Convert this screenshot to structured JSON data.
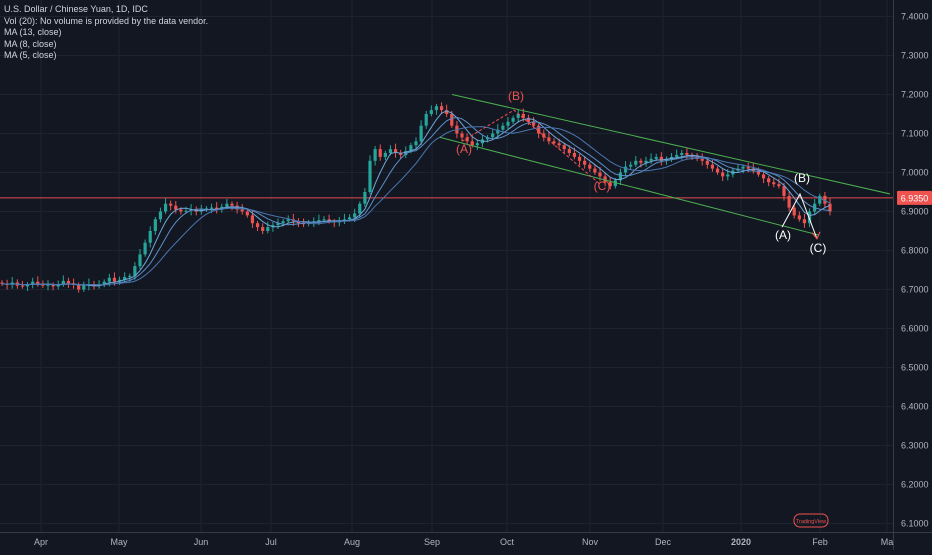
{
  "legend": {
    "title": "U.S. Dollar / Chinese Yuan, 1D, IDC",
    "vol": "Vol (20): No volume is provided by the data vendor.",
    "ma13": "MA (13, close)",
    "ma8": "MA (8, close)",
    "ma5": "MA (5, close)"
  },
  "price_badge": "6.9350",
  "watermark": "TradingView",
  "colors": {
    "background": "#131722",
    "up": "#26a69a",
    "down": "#ef5350",
    "ma": "#5b9bd5",
    "channel": "#4caf50",
    "wave_red": "#ef5350",
    "wave_white": "#ffffff",
    "grid": "#1e2330",
    "axis_text": "#b2b5be"
  },
  "chart_data": {
    "type": "candlestick",
    "title": "U.S. Dollar / Chinese Yuan, 1D, IDC",
    "y_range": [
      6.05,
      7.45
    ],
    "y_ticks": [
      "7.4000",
      "7.3000",
      "7.2000",
      "7.1000",
      "7.0000",
      "6.9000",
      "6.8000",
      "6.7000",
      "6.6000",
      "6.5000",
      "6.4000",
      "6.3000",
      "6.2000",
      "6.1000"
    ],
    "x_labels": [
      "Apr",
      "May",
      "Jun",
      "Jul",
      "Aug",
      "Sep",
      "Oct",
      "Nov",
      "Dec",
      "2020",
      "Feb",
      "Ma"
    ],
    "horizontal_line": 6.935,
    "closes": [
      6.715,
      6.712,
      6.718,
      6.71,
      6.708,
      6.713,
      6.72,
      6.715,
      6.71,
      6.712,
      6.708,
      6.713,
      6.722,
      6.716,
      6.712,
      6.7,
      6.71,
      6.714,
      6.71,
      6.712,
      6.72,
      6.73,
      6.72,
      6.725,
      6.732,
      6.735,
      6.76,
      6.79,
      6.82,
      6.85,
      6.88,
      6.9,
      6.92,
      6.915,
      6.905,
      6.9,
      6.902,
      6.905,
      6.9,
      6.905,
      6.908,
      6.91,
      6.905,
      6.912,
      6.92,
      6.915,
      6.905,
      6.9,
      6.89,
      6.87,
      6.86,
      6.85,
      6.86,
      6.865,
      6.87,
      6.875,
      6.88,
      6.875,
      6.87,
      6.868,
      6.872,
      6.875,
      6.878,
      6.88,
      6.875,
      6.872,
      6.876,
      6.88,
      6.885,
      6.895,
      6.92,
      6.95,
      7.03,
      7.06,
      7.04,
      7.05,
      7.06,
      7.05,
      7.045,
      7.055,
      7.07,
      7.08,
      7.12,
      7.15,
      7.16,
      7.17,
      7.16,
      7.15,
      7.12,
      7.1,
      7.09,
      7.08,
      7.07,
      7.075,
      7.085,
      7.09,
      7.1,
      7.11,
      7.12,
      7.13,
      7.14,
      7.15,
      7.14,
      7.13,
      7.12,
      7.1,
      7.09,
      7.08,
      7.075,
      7.07,
      7.06,
      7.05,
      7.04,
      7.03,
      7.02,
      7.01,
      7.0,
      6.99,
      6.975,
      6.965,
      6.98,
      7.0,
      7.015,
      7.02,
      7.03,
      7.025,
      7.03,
      7.035,
      7.04,
      7.03,
      7.035,
      7.04,
      7.045,
      7.05,
      7.045,
      7.04,
      7.035,
      7.03,
      7.02,
      7.01,
      7.0,
      6.99,
      6.995,
      7.005,
      7.01,
      7.015,
      7.01,
      7.005,
      6.995,
      6.985,
      6.975,
      6.97,
      6.965,
      6.94,
      6.91,
      6.89,
      6.88,
      6.87,
      6.9,
      6.92,
      6.94,
      6.92,
      6.9
    ],
    "moving_averages": [
      {
        "name": "MA (5, close)",
        "period": 5
      },
      {
        "name": "MA (8, close)",
        "period": 8
      },
      {
        "name": "MA (13, close)",
        "period": 13
      }
    ],
    "channel_lines": [
      {
        "from": [
          "Sep",
          7.2
        ],
        "to": [
          "Feb",
          6.945
        ]
      },
      {
        "from": [
          "Sep",
          7.09
        ],
        "to": [
          "Jan",
          6.84
        ]
      }
    ],
    "annotations": [
      {
        "text": "(B)",
        "at": [
          "Oct",
          7.18
        ],
        "color": "red"
      },
      {
        "text": "(A)",
        "at": [
          "Sep",
          7.06
        ],
        "color": "red"
      },
      {
        "text": "(C)",
        "at": [
          "Nov",
          6.95
        ],
        "color": "red"
      },
      {
        "text": "(B)",
        "at": [
          "Jan",
          6.96
        ],
        "color": "white"
      },
      {
        "text": "(A)",
        "at": [
          "Jan",
          6.82
        ],
        "color": "white"
      },
      {
        "text": "(C)",
        "at": [
          "Feb",
          6.78
        ],
        "color": "white"
      }
    ]
  }
}
